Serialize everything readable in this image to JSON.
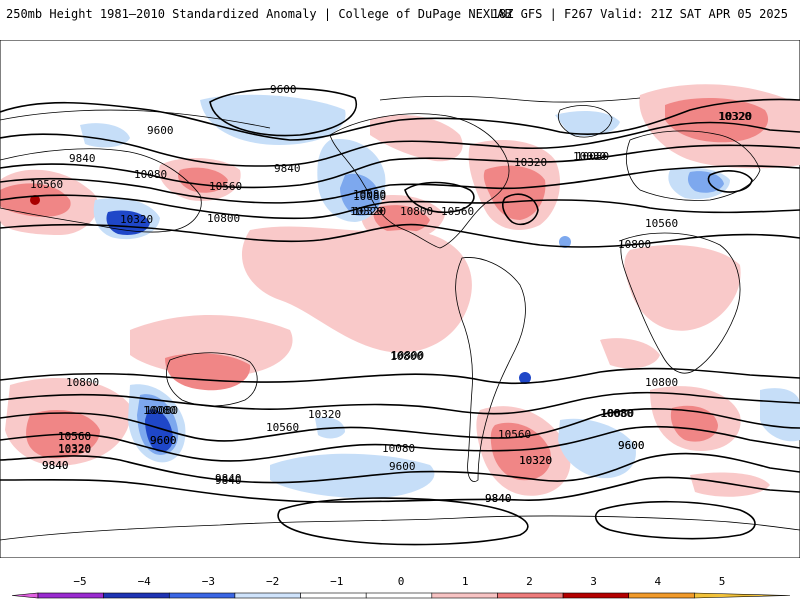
{
  "header": {
    "left_title": "250mb Height 1981–2010 Standardized Anomaly | College of DuPage NEXLAB",
    "right_title": "18Z GFS | F267 Valid: 21Z SAT APR 05 2025"
  },
  "colors": {
    "anom_pos_1": "#f9c9c9",
    "anom_pos_2": "#f08686",
    "anom_pos_3": "#d73a3a",
    "anom_pos_4": "#a80000",
    "anom_neg_1": "#c6def8",
    "anom_neg_2": "#7da8ee",
    "anom_neg_3": "#1f47c8",
    "contour": "#000000",
    "coast": "#000000"
  },
  "contour_labels": [
    "9600",
    "9600",
    "9840",
    "9840",
    "10080",
    "10560",
    "10320",
    "10800",
    "10560",
    "10080",
    "10320",
    "10800",
    "10560",
    "10320",
    "10080",
    "10320",
    "10800",
    "10800",
    "10080",
    "10080",
    "9600",
    "10560",
    "10320",
    "10320",
    "10080",
    "9600",
    "9840",
    "10800",
    "10080",
    "10320",
    "10560",
    "9840",
    "9600",
    "9840",
    "10320",
    "10080",
    "10560",
    "10800",
    "10080",
    "10560",
    "10320",
    "9600",
    "9840",
    "10320",
    "10800",
    "10560",
    "10080",
    "9600",
    "9840",
    "10320",
    "9840"
  ],
  "colorbar": {
    "ticks": [
      "−5",
      "−4",
      "−3",
      "−2",
      "−1",
      "0",
      "1",
      "2",
      "3",
      "4",
      "5"
    ],
    "segments": [
      "#e060e0",
      "#9a2bd0",
      "#1f34b4",
      "#3a66e4",
      "#cfe3fb",
      "#ffffff",
      "#ffffff",
      "#f7c3c3",
      "#ee7b7b",
      "#b40000",
      "#f19a2a",
      "#f2c23a"
    ]
  }
}
